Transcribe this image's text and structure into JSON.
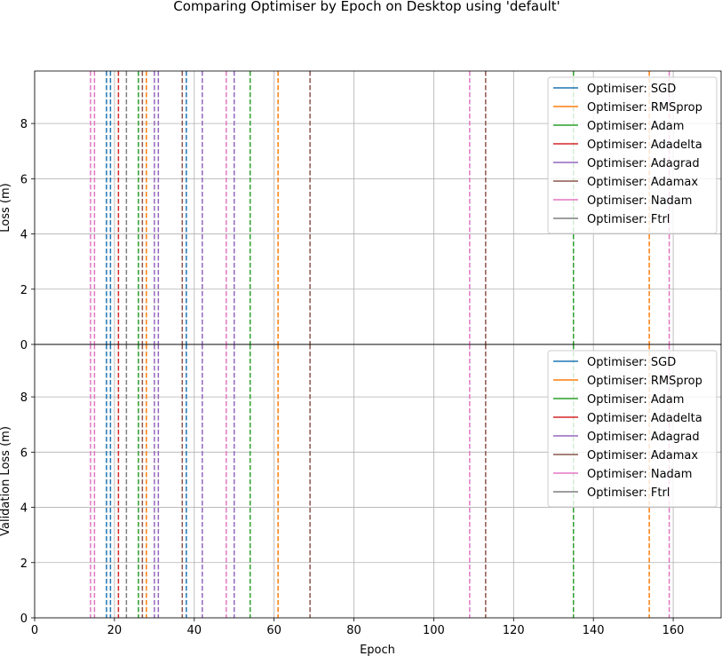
{
  "chart_data": {
    "type": "line",
    "title": "Comparing Optimiser by Epoch on Desktop using 'default'",
    "xlabel": "Epoch",
    "xlim": [
      0,
      172
    ],
    "xticks": [
      0,
      20,
      40,
      60,
      80,
      100,
      120,
      140,
      160
    ],
    "grid": true,
    "legend_position": "top-right",
    "series": [
      {
        "name": "Optimiser: SGD",
        "color": "#1f77b4"
      },
      {
        "name": "Optimiser: RMSprop",
        "color": "#ff7f0e"
      },
      {
        "name": "Optimiser: Adam",
        "color": "#2ca02c"
      },
      {
        "name": "Optimiser: Adadelta",
        "color": "#d62728"
      },
      {
        "name": "Optimiser: Adagrad",
        "color": "#9467bd"
      },
      {
        "name": "Optimiser: Adamax",
        "color": "#8c564b"
      },
      {
        "name": "Optimiser: Nadam",
        "color": "#e377c2"
      },
      {
        "name": "Optimiser: Ftrl",
        "color": "#7f7f7f"
      }
    ],
    "vlines": [
      {
        "x": 14,
        "color": "#e377c2"
      },
      {
        "x": 15,
        "color": "#e377c2"
      },
      {
        "x": 18,
        "color": "#1f77b4"
      },
      {
        "x": 19,
        "color": "#1f77b4"
      },
      {
        "x": 21,
        "color": "#d62728"
      },
      {
        "x": 23,
        "color": "#7f7f7f"
      },
      {
        "x": 26,
        "color": "#2ca02c"
      },
      {
        "x": 27,
        "color": "#8c564b"
      },
      {
        "x": 28,
        "color": "#ff7f0e"
      },
      {
        "x": 30,
        "color": "#9467bd"
      },
      {
        "x": 31,
        "color": "#9467bd"
      },
      {
        "x": 37,
        "color": "#8c564b"
      },
      {
        "x": 38,
        "color": "#1f77b4"
      },
      {
        "x": 42,
        "color": "#9467bd"
      },
      {
        "x": 48,
        "color": "#e377c2"
      },
      {
        "x": 50,
        "color": "#9467bd"
      },
      {
        "x": 54,
        "color": "#2ca02c"
      },
      {
        "x": 61,
        "color": "#ff7f0e"
      },
      {
        "x": 69,
        "color": "#8c564b"
      },
      {
        "x": 109,
        "color": "#e377c2"
      },
      {
        "x": 113,
        "color": "#8c564b"
      },
      {
        "x": 135,
        "color": "#2ca02c"
      },
      {
        "x": 154,
        "color": "#ff7f0e"
      },
      {
        "x": 159,
        "color": "#e377c2"
      }
    ],
    "panels": [
      {
        "ylabel": "Loss (m)",
        "ylim": [
          0,
          9.9
        ],
        "yticks": [
          0,
          2,
          4,
          6,
          8
        ]
      },
      {
        "ylabel": "Validation Loss (m)",
        "ylim": [
          0,
          9.9
        ],
        "yticks": [
          0,
          2,
          4,
          6,
          8
        ]
      }
    ]
  }
}
